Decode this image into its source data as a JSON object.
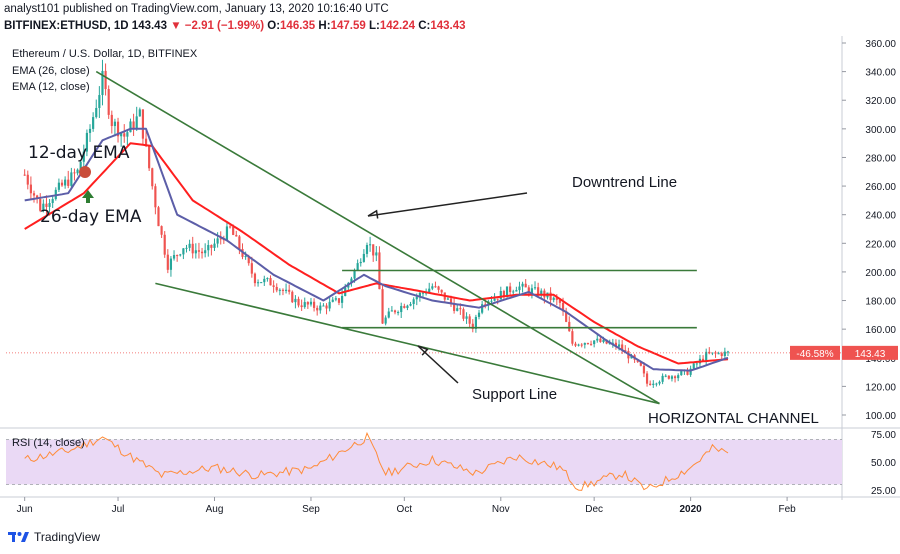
{
  "header": {
    "published_line": "analyst101 published on TradingView.com, January 13, 2020 10:16:40 UTC",
    "symbol": "BITFINEX:ETHUSD, 1D",
    "last": "143.43",
    "change": "▼ −2.91 (−1.99%)",
    "o_label": "O:",
    "o": "146.35",
    "h_label": "H:",
    "h": "147.59",
    "l_label": "L:",
    "l": "142.24",
    "c_label": "C:",
    "c": "143.43"
  },
  "legend": {
    "title": "Ethereum / U.S. Dollar, 1D, BITFINEX",
    "ema26": "EMA (26, close)",
    "ema12": "EMA (12, close)",
    "rsi": "RSI (14, close)"
  },
  "annotations": {
    "ema12": "12-day EMA",
    "ema26": "26-day EMA",
    "downtrend": "Downtrend Line",
    "support": "Support Line",
    "channel": "HORIZONTAL CHANNEL"
  },
  "price_tag": {
    "pct": "-46.58%",
    "price": "143.43"
  },
  "footer": {
    "brand": "TradingView"
  },
  "colors": {
    "up": "#26a69a",
    "down": "#ef5350",
    "ema12": "#5c5ea8",
    "ema26": "#ff1f1f",
    "trendline": "#3a7a3a",
    "rsi_line": "#ff8c3a",
    "rsi_band": "#ead9f5",
    "axis_text": "#131722"
  },
  "chart_data": {
    "type": "candlestick",
    "price_axis": {
      "ticks": [
        100,
        120,
        140,
        160,
        180,
        200,
        220,
        240,
        260,
        280,
        300,
        320,
        340,
        360
      ],
      "tick_labels": [
        "100.00",
        "120.00",
        "140.00",
        "160.00",
        "180.00",
        "200.00",
        "220.00",
        "240.00",
        "260.00",
        "280.00",
        "300.00",
        "320.00",
        "340.00",
        "360.00"
      ]
    },
    "rsi_axis": {
      "ticks": [
        25,
        50,
        75
      ],
      "tick_labels": [
        "25.00",
        "50.00",
        "75.00"
      ]
    },
    "x_axis": {
      "ticks": [
        "Jun",
        "Jul",
        "Aug",
        "Sep",
        "Oct",
        "Nov",
        "Dec",
        "2020",
        "Feb"
      ]
    },
    "close_anchors": [
      [
        "2019-06-01",
        268
      ],
      [
        "2019-06-06",
        245
      ],
      [
        "2019-06-12",
        258
      ],
      [
        "2019-06-18",
        270
      ],
      [
        "2019-06-22",
        300
      ],
      [
        "2019-06-26",
        335
      ],
      [
        "2019-06-29",
        305
      ],
      [
        "2019-07-03",
        295
      ],
      [
        "2019-07-08",
        310
      ],
      [
        "2019-07-10",
        285
      ],
      [
        "2019-07-14",
        235
      ],
      [
        "2019-07-17",
        205
      ],
      [
        "2019-07-22",
        218
      ],
      [
        "2019-07-29",
        213
      ],
      [
        "2019-08-06",
        230
      ],
      [
        "2019-08-14",
        195
      ],
      [
        "2019-08-20",
        192
      ],
      [
        "2019-08-28",
        178
      ],
      [
        "2019-09-04",
        175
      ],
      [
        "2019-09-10",
        180
      ],
      [
        "2019-09-16",
        205
      ],
      [
        "2019-09-19",
        222
      ],
      [
        "2019-09-22",
        210
      ],
      [
        "2019-09-24",
        165
      ],
      [
        "2019-09-27",
        172
      ],
      [
        "2019-10-03",
        180
      ],
      [
        "2019-10-10",
        190
      ],
      [
        "2019-10-16",
        178
      ],
      [
        "2019-10-23",
        162
      ],
      [
        "2019-10-26",
        180
      ],
      [
        "2019-10-30",
        182
      ],
      [
        "2019-11-06",
        190
      ],
      [
        "2019-11-14",
        185
      ],
      [
        "2019-11-20",
        178
      ],
      [
        "2019-11-24",
        150
      ],
      [
        "2019-12-01",
        152
      ],
      [
        "2019-12-09",
        148
      ],
      [
        "2019-12-16",
        133
      ],
      [
        "2019-12-18",
        122
      ],
      [
        "2019-12-25",
        127
      ],
      [
        "2019-12-31",
        130
      ],
      [
        "2020-01-06",
        142
      ],
      [
        "2020-01-13",
        143.43
      ]
    ],
    "ema12_anchors": [
      [
        "2019-06-01",
        250
      ],
      [
        "2019-06-15",
        255
      ],
      [
        "2019-06-26",
        292
      ],
      [
        "2019-07-05",
        300
      ],
      [
        "2019-07-10",
        300
      ],
      [
        "2019-07-20",
        240
      ],
      [
        "2019-08-05",
        222
      ],
      [
        "2019-08-20",
        198
      ],
      [
        "2019-09-05",
        180
      ],
      [
        "2019-09-18",
        198
      ],
      [
        "2019-09-25",
        190
      ],
      [
        "2019-10-10",
        180
      ],
      [
        "2019-10-25",
        175
      ],
      [
        "2019-11-10",
        186
      ],
      [
        "2019-11-22",
        172
      ],
      [
        "2019-12-05",
        152
      ],
      [
        "2019-12-20",
        132
      ],
      [
        "2020-01-01",
        131
      ],
      [
        "2020-01-13",
        140
      ]
    ],
    "ema26_anchors": [
      [
        "2019-06-01",
        230
      ],
      [
        "2019-06-20",
        255
      ],
      [
        "2019-07-05",
        290
      ],
      [
        "2019-07-12",
        288
      ],
      [
        "2019-07-25",
        250
      ],
      [
        "2019-08-10",
        228
      ],
      [
        "2019-08-25",
        205
      ],
      [
        "2019-09-10",
        185
      ],
      [
        "2019-09-22",
        192
      ],
      [
        "2019-10-05",
        187
      ],
      [
        "2019-10-22",
        180
      ],
      [
        "2019-11-06",
        184
      ],
      [
        "2019-11-18",
        184
      ],
      [
        "2019-12-01",
        165
      ],
      [
        "2019-12-15",
        148
      ],
      [
        "2019-12-28",
        136
      ],
      [
        "2020-01-13",
        139
      ]
    ],
    "rsi_anchors": [
      [
        "2019-06-01",
        52
      ],
      [
        "2019-06-15",
        60
      ],
      [
        "2019-06-26",
        72
      ],
      [
        "2019-07-05",
        55
      ],
      [
        "2019-07-15",
        38
      ],
      [
        "2019-08-01",
        45
      ],
      [
        "2019-08-15",
        38
      ],
      [
        "2019-09-01",
        44
      ],
      [
        "2019-09-19",
        72
      ],
      [
        "2019-09-25",
        40
      ],
      [
        "2019-10-10",
        52
      ],
      [
        "2019-10-24",
        40
      ],
      [
        "2019-11-06",
        55
      ],
      [
        "2019-11-20",
        45
      ],
      [
        "2019-11-26",
        27
      ],
      [
        "2019-12-10",
        40
      ],
      [
        "2019-12-18",
        25
      ],
      [
        "2020-01-01",
        45
      ],
      [
        "2020-01-08",
        62
      ],
      [
        "2020-01-13",
        58
      ]
    ],
    "trendlines": [
      {
        "name": "Downtrend Line",
        "from": [
          "2019-06-24",
          340
        ],
        "to": [
          "2019-12-22",
          108
        ]
      },
      {
        "name": "Support Line",
        "from": [
          "2019-07-13",
          192
        ],
        "to": [
          "2019-12-22",
          108
        ]
      },
      {
        "name": "channel-top",
        "from": [
          "2019-09-11",
          201
        ],
        "to": [
          "2020-01-03",
          201
        ]
      },
      {
        "name": "channel-bottom",
        "from": [
          "2019-09-11",
          161
        ],
        "to": [
          "2020-01-03",
          161
        ]
      }
    ],
    "last_price": 143.43
  }
}
